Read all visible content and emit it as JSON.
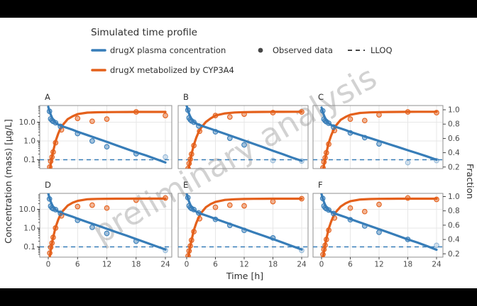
{
  "watermark": "preliminary analysis",
  "legend": {
    "title": "Simulated time profile",
    "items": [
      {
        "label": "drugX plasma concentration",
        "type": "line",
        "color": "#377db8"
      },
      {
        "label": "drugX metabolized by CYP3A4",
        "type": "line",
        "color": "#e4601b"
      },
      {
        "label": "Observed data",
        "type": "point",
        "color": "#474747"
      },
      {
        "label": "LLOQ",
        "type": "dash",
        "color": "#474747"
      }
    ]
  },
  "axes": {
    "x_label": "Time [h]",
    "x_ticks": [
      "0",
      "6",
      "12",
      "18",
      "24"
    ],
    "x_tick_values": [
      0,
      6,
      12,
      18,
      24
    ],
    "y_left_label": "Concentration (mass) [µg/L]",
    "y_left_ticks": [
      "10.0",
      "1.0",
      "0.1"
    ],
    "y_left_tick_values": [
      10,
      1,
      0.1
    ],
    "y_right_label": "Fraction",
    "y_right_ticks": [
      "1.0",
      "0.8",
      "0.6",
      "0.4",
      "0.2"
    ],
    "y_right_tick_values": [
      1.0,
      0.8,
      0.6,
      0.4,
      0.2
    ]
  },
  "colors": {
    "blue": "#377db8",
    "orange": "#e4601b",
    "legend_key": "#474747",
    "watermark": "#8a8a8a",
    "grid": "#e7e7e7",
    "border": "#8f8f8f",
    "text": "#2f2f2f",
    "tick_text": "#4a4a4a",
    "background": "#ffffff"
  },
  "chart_data": {
    "type": "line",
    "x_range": [
      0,
      24
    ],
    "conc_scale": "log",
    "conc_ticks": [
      10,
      1,
      0.1
    ],
    "frac_range": [
      0,
      1
    ],
    "lloq": 0.1,
    "time": [
      0,
      0.1,
      0.25,
      0.5,
      0.75,
      1,
      1.5,
      2,
      2.5,
      3,
      4,
      5,
      6,
      8,
      10,
      12,
      14,
      16,
      18,
      20,
      22,
      24
    ],
    "panels": [
      {
        "label": "A",
        "sim_conc": [
          66,
          53.6,
          39.9,
          25.7,
          17.8,
          13.4,
          9.3,
          7.6,
          6.6,
          5.9,
          4.8,
          3.9,
          3.1,
          2.05,
          1.35,
          0.89,
          0.58,
          0.38,
          0.25,
          0.17,
          0.11,
          0.071
        ],
        "sim_frac": [
          0,
          0.05,
          0.13,
          0.24,
          0.34,
          0.42,
          0.56,
          0.66,
          0.74,
          0.79,
          0.87,
          0.91,
          0.94,
          0.96,
          0.965,
          0.967,
          0.968,
          0.969,
          0.97,
          0.97,
          0.97,
          0.97
        ],
        "obs_conc": [
          [
            0.25,
            38
          ],
          [
            0.5,
            15
          ],
          [
            0.75,
            12.5
          ],
          [
            1,
            11
          ],
          [
            1.5,
            9.3
          ],
          [
            2.5,
            6
          ],
          [
            6,
            2.5
          ],
          [
            9,
            1
          ],
          [
            12,
            0.49
          ],
          [
            18,
            0.21
          ],
          [
            24,
            0.14,
            1
          ]
        ],
        "obs_frac": [
          [
            0.3,
            0.2
          ],
          [
            0.5,
            0.28
          ],
          [
            0.75,
            0.34
          ],
          [
            1,
            0.41
          ],
          [
            1.5,
            0.54
          ],
          [
            2.7,
            0.72
          ],
          [
            6,
            0.88
          ],
          [
            9,
            0.84
          ],
          [
            12,
            0.87
          ],
          [
            18,
            0.97
          ],
          [
            24,
            0.92
          ]
        ]
      },
      {
        "label": "B",
        "sim_conc": [
          74,
          60,
          44,
          28,
          19.5,
          14.8,
          10.3,
          8.5,
          7.4,
          6.6,
          5.4,
          4.4,
          3.6,
          2.4,
          1.6,
          1.05,
          0.7,
          0.46,
          0.3,
          0.2,
          0.13,
          0.088
        ],
        "sim_frac": [
          0,
          0.04,
          0.11,
          0.21,
          0.3,
          0.38,
          0.51,
          0.61,
          0.69,
          0.75,
          0.83,
          0.88,
          0.92,
          0.95,
          0.962,
          0.967,
          0.969,
          0.97,
          0.971,
          0.971,
          0.972,
          0.972
        ],
        "obs_conc": [
          [
            0.25,
            44
          ],
          [
            0.5,
            17
          ],
          [
            0.75,
            13.5
          ],
          [
            1,
            11.8
          ],
          [
            1.5,
            10
          ],
          [
            2.5,
            6.3
          ],
          [
            6,
            3.1
          ],
          [
            9,
            1.4
          ],
          [
            12,
            0.62
          ],
          [
            18,
            0.09,
            1
          ],
          [
            24,
            0.085,
            1
          ]
        ],
        "obs_frac": [
          [
            0.3,
            0.18
          ],
          [
            0.5,
            0.25
          ],
          [
            0.75,
            0.31
          ],
          [
            1,
            0.38
          ],
          [
            1.5,
            0.5
          ],
          [
            2.7,
            0.7
          ],
          [
            6,
            0.92
          ],
          [
            9,
            0.9
          ],
          [
            12,
            0.94
          ],
          [
            18,
            0.96
          ],
          [
            24,
            0.97
          ]
        ]
      },
      {
        "label": "C",
        "sim_conc": [
          60,
          49,
          36,
          23,
          16.2,
          12.2,
          8.6,
          7.1,
          6.2,
          5.6,
          4.6,
          3.8,
          3.05,
          2.1,
          1.45,
          1.0,
          0.68,
          0.47,
          0.32,
          0.22,
          0.15,
          0.1
        ],
        "sim_frac": [
          0,
          0.05,
          0.12,
          0.23,
          0.32,
          0.4,
          0.54,
          0.64,
          0.72,
          0.78,
          0.86,
          0.9,
          0.93,
          0.955,
          0.963,
          0.967,
          0.969,
          0.97,
          0.971,
          0.972,
          0.972,
          0.972
        ],
        "obs_conc": [
          [
            0.25,
            40
          ],
          [
            0.5,
            14.5
          ],
          [
            0.75,
            12
          ],
          [
            1,
            10.5
          ],
          [
            1.5,
            8.8
          ],
          [
            2.5,
            5.5
          ],
          [
            6,
            2.7
          ],
          [
            9,
            1.5
          ],
          [
            12,
            0.7
          ],
          [
            18,
            0.07,
            1
          ],
          [
            24,
            0.09,
            1
          ]
        ],
        "obs_frac": [
          [
            0.3,
            0.19
          ],
          [
            0.5,
            0.27
          ],
          [
            0.75,
            0.33
          ],
          [
            1,
            0.4
          ],
          [
            1.5,
            0.52
          ],
          [
            2.7,
            0.71
          ],
          [
            6,
            0.87
          ],
          [
            9,
            0.85
          ],
          [
            12,
            0.93
          ],
          [
            18,
            0.97
          ],
          [
            24,
            0.96
          ]
        ]
      },
      {
        "label": "D",
        "sim_conc": [
          70,
          56,
          41,
          26,
          18,
          13.5,
          9.4,
          7.7,
          6.7,
          6,
          4.9,
          4,
          3.2,
          2.1,
          1.4,
          0.92,
          0.6,
          0.4,
          0.26,
          0.17,
          0.11,
          0.072
        ],
        "sim_frac": [
          0,
          0.05,
          0.13,
          0.25,
          0.35,
          0.43,
          0.57,
          0.67,
          0.75,
          0.8,
          0.875,
          0.915,
          0.94,
          0.962,
          0.967,
          0.969,
          0.97,
          0.97,
          0.971,
          0.971,
          0.971,
          0.971
        ],
        "obs_conc": [
          [
            0.25,
            36
          ],
          [
            0.5,
            14.8
          ],
          [
            0.75,
            12
          ],
          [
            1,
            10.8
          ],
          [
            1.5,
            9.6
          ],
          [
            2.5,
            6.2
          ],
          [
            6,
            2.6
          ],
          [
            9,
            1.1
          ],
          [
            12,
            0.52
          ],
          [
            18,
            0.2
          ],
          [
            24,
            0.065,
            1
          ]
        ],
        "obs_frac": [
          [
            0.3,
            0.21
          ],
          [
            0.5,
            0.29
          ],
          [
            0.75,
            0.35
          ],
          [
            1,
            0.43
          ],
          [
            1.5,
            0.56
          ],
          [
            2.7,
            0.73
          ],
          [
            6,
            0.86
          ],
          [
            9,
            0.88
          ],
          [
            12,
            0.84
          ],
          [
            18,
            0.95
          ],
          [
            24,
            0.98
          ]
        ]
      },
      {
        "label": "E",
        "sim_conc": [
          68,
          55,
          40,
          25.5,
          17.6,
          13.2,
          9.2,
          7.5,
          6.5,
          5.8,
          4.75,
          3.85,
          3.1,
          2.05,
          1.35,
          0.9,
          0.59,
          0.39,
          0.26,
          0.17,
          0.11,
          0.072
        ],
        "sim_frac": [
          0,
          0.045,
          0.12,
          0.22,
          0.31,
          0.39,
          0.53,
          0.63,
          0.71,
          0.77,
          0.85,
          0.895,
          0.925,
          0.953,
          0.962,
          0.966,
          0.968,
          0.969,
          0.97,
          0.97,
          0.97,
          0.97
        ],
        "obs_conc": [
          [
            0.25,
            42
          ],
          [
            0.5,
            15.5
          ],
          [
            0.75,
            12.6
          ],
          [
            1,
            11
          ],
          [
            1.5,
            9.7
          ],
          [
            2.5,
            6.4
          ],
          [
            6,
            2.9
          ],
          [
            9,
            1.4
          ],
          [
            12,
            0.76
          ],
          [
            18,
            0.3
          ],
          [
            24,
            0.065,
            1
          ]
        ],
        "obs_frac": [
          [
            0.3,
            0.17
          ],
          [
            0.5,
            0.24
          ],
          [
            0.75,
            0.31
          ],
          [
            1,
            0.39
          ],
          [
            1.5,
            0.51
          ],
          [
            2.7,
            0.69
          ],
          [
            6,
            0.85
          ],
          [
            9,
            0.88
          ],
          [
            12,
            0.87
          ],
          [
            18,
            0.93
          ],
          [
            24,
            0.97
          ]
        ]
      },
      {
        "label": "F",
        "sim_conc": [
          64,
          52,
          38,
          24.5,
          17,
          12.8,
          9,
          7.3,
          6.3,
          5.7,
          4.65,
          3.8,
          3.05,
          2,
          1.33,
          0.88,
          0.58,
          0.38,
          0.25,
          0.17,
          0.11,
          0.07
        ],
        "sim_frac": [
          0,
          0.05,
          0.125,
          0.235,
          0.33,
          0.41,
          0.55,
          0.65,
          0.73,
          0.785,
          0.86,
          0.905,
          0.935,
          0.958,
          0.965,
          0.968,
          0.969,
          0.97,
          0.97,
          0.97,
          0.97,
          0.97
        ],
        "obs_conc": [
          [
            0.25,
            38
          ],
          [
            0.5,
            15
          ],
          [
            0.75,
            12.2
          ],
          [
            1,
            10.7
          ],
          [
            1.5,
            9.2
          ],
          [
            2.5,
            6
          ],
          [
            6,
            2.8
          ],
          [
            9,
            1.3
          ],
          [
            12,
            0.6
          ],
          [
            18,
            0.25
          ],
          [
            24,
            0.12,
            1
          ]
        ],
        "obs_frac": [
          [
            0.3,
            0.19
          ],
          [
            0.5,
            0.26
          ],
          [
            0.75,
            0.32
          ],
          [
            1,
            0.4
          ],
          [
            1.5,
            0.53
          ],
          [
            2.7,
            0.7
          ],
          [
            6,
            0.84
          ],
          [
            9,
            0.79
          ],
          [
            12,
            0.89
          ],
          [
            18,
            0.98
          ],
          [
            24,
            0.96
          ]
        ]
      }
    ]
  }
}
